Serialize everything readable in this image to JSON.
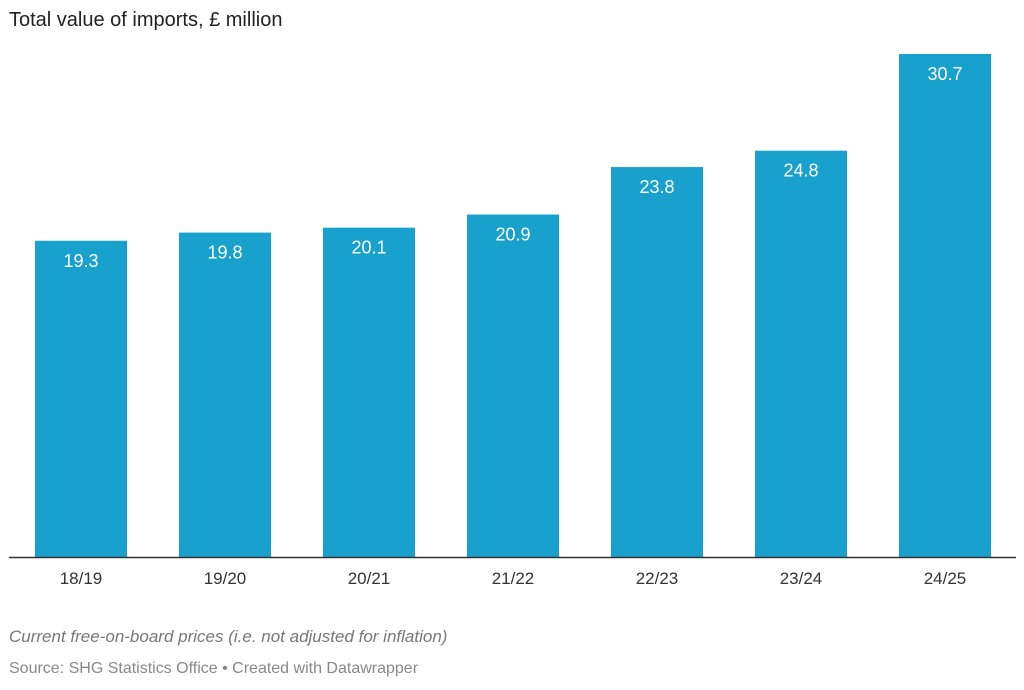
{
  "chart_data": {
    "type": "bar",
    "title": "Total value of imports, £ million",
    "categories": [
      "18/19",
      "19/20",
      "20/21",
      "21/22",
      "22/23",
      "23/24",
      "24/25"
    ],
    "values": [
      19.3,
      19.8,
      20.1,
      20.9,
      23.8,
      24.8,
      30.7
    ],
    "labels": [
      "19.3",
      "19.8",
      "20.1",
      "20.9",
      "23.8",
      "24.8",
      "30.7"
    ],
    "xlabel": "",
    "ylabel": "",
    "ylim": [
      0,
      30.7
    ],
    "grid": false,
    "bar_color": "#18a1cd",
    "notes": "Current free-on-board prices (i.e. not adjusted for inflation)",
    "source": "Source: SHG Statistics Office • Created with Datawrapper"
  }
}
